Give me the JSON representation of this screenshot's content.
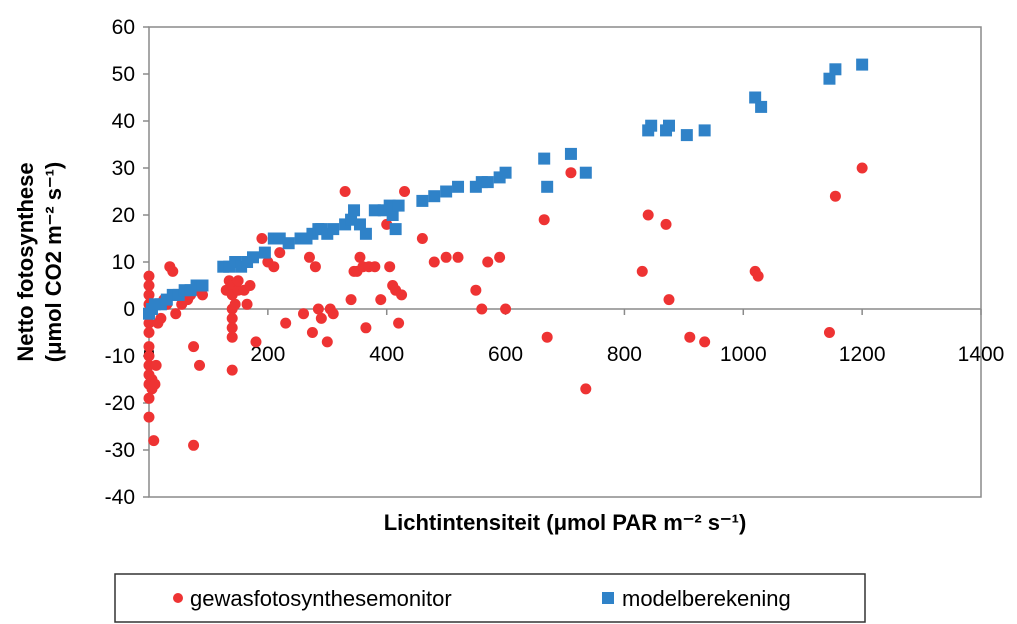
{
  "chart_data": {
    "type": "scatter",
    "title": "",
    "xlabel": "Lichtintensiteit (μmol PAR m⁻² s⁻¹)",
    "ylabel_line1": "Netto fotosynthese",
    "ylabel_line2": "(μmol CO2 m⁻² s⁻¹)",
    "xlim": [
      0,
      1400
    ],
    "ylim": [
      -40,
      60
    ],
    "xticks": [
      "0",
      "200",
      "400",
      "600",
      "800",
      "1000",
      "1200",
      "1400"
    ],
    "yticks": [
      "60",
      "50",
      "40",
      "30",
      "20",
      "10",
      "0",
      "-10",
      "-20",
      "-30",
      "-40"
    ],
    "grid": false,
    "legend_position": "bottom",
    "series": [
      {
        "name": "gewasfotosynthesemonitor",
        "color": "#ee3333",
        "marker": "circle",
        "points": [
          [
            0,
            7
          ],
          [
            0,
            5
          ],
          [
            0,
            3
          ],
          [
            0,
            1
          ],
          [
            0,
            -1
          ],
          [
            0,
            -3
          ],
          [
            0,
            -5
          ],
          [
            0,
            -8
          ],
          [
            0,
            -10
          ],
          [
            0,
            -12
          ],
          [
            0,
            -14
          ],
          [
            0,
            -16
          ],
          [
            0,
            -19
          ],
          [
            0,
            -23
          ],
          [
            5,
            -17
          ],
          [
            5,
            -15
          ],
          [
            8,
            -28
          ],
          [
            10,
            -16
          ],
          [
            12,
            -12
          ],
          [
            15,
            -3
          ],
          [
            20,
            -2
          ],
          [
            25,
            2
          ],
          [
            30,
            1
          ],
          [
            35,
            9
          ],
          [
            40,
            8
          ],
          [
            45,
            -1
          ],
          [
            50,
            3
          ],
          [
            55,
            1
          ],
          [
            60,
            4
          ],
          [
            65,
            2
          ],
          [
            70,
            3
          ],
          [
            75,
            -8
          ],
          [
            75,
            -29
          ],
          [
            80,
            4
          ],
          [
            85,
            -12
          ],
          [
            90,
            3
          ],
          [
            130,
            4
          ],
          [
            135,
            6
          ],
          [
            140,
            5
          ],
          [
            140,
            3
          ],
          [
            140,
            0
          ],
          [
            140,
            -2
          ],
          [
            140,
            -4
          ],
          [
            140,
            -6
          ],
          [
            140,
            -13
          ],
          [
            145,
            1
          ],
          [
            150,
            4
          ],
          [
            150,
            6
          ],
          [
            160,
            4
          ],
          [
            165,
            1
          ],
          [
            170,
            5
          ],
          [
            180,
            -7
          ],
          [
            190,
            15
          ],
          [
            200,
            10
          ],
          [
            210,
            9
          ],
          [
            220,
            12
          ],
          [
            230,
            -3
          ],
          [
            260,
            -1
          ],
          [
            270,
            11
          ],
          [
            275,
            -5
          ],
          [
            280,
            9
          ],
          [
            285,
            0
          ],
          [
            290,
            -2
          ],
          [
            300,
            -7
          ],
          [
            305,
            0
          ],
          [
            310,
            -1
          ],
          [
            330,
            25
          ],
          [
            340,
            2
          ],
          [
            345,
            8
          ],
          [
            350,
            8
          ],
          [
            355,
            11
          ],
          [
            360,
            9
          ],
          [
            365,
            -4
          ],
          [
            370,
            9
          ],
          [
            380,
            9
          ],
          [
            390,
            2
          ],
          [
            400,
            18
          ],
          [
            405,
            9
          ],
          [
            410,
            5
          ],
          [
            415,
            4
          ],
          [
            420,
            -3
          ],
          [
            425,
            3
          ],
          [
            430,
            25
          ],
          [
            460,
            15
          ],
          [
            480,
            10
          ],
          [
            500,
            11
          ],
          [
            520,
            11
          ],
          [
            550,
            4
          ],
          [
            560,
            0
          ],
          [
            570,
            10
          ],
          [
            590,
            11
          ],
          [
            600,
            0
          ],
          [
            665,
            19
          ],
          [
            670,
            -6
          ],
          [
            710,
            29
          ],
          [
            735,
            -17
          ],
          [
            830,
            8
          ],
          [
            840,
            20
          ],
          [
            870,
            18
          ],
          [
            875,
            2
          ],
          [
            910,
            -6
          ],
          [
            935,
            -7
          ],
          [
            1020,
            8
          ],
          [
            1025,
            7
          ],
          [
            1145,
            -5
          ],
          [
            1155,
            24
          ],
          [
            1200,
            30
          ]
        ]
      },
      {
        "name": "modelberekening",
        "color": "#2f82c8",
        "marker": "square",
        "points": [
          [
            0,
            -1
          ],
          [
            5,
            0
          ],
          [
            10,
            1
          ],
          [
            20,
            1
          ],
          [
            30,
            2
          ],
          [
            40,
            3
          ],
          [
            50,
            3
          ],
          [
            60,
            4
          ],
          [
            70,
            4
          ],
          [
            80,
            5
          ],
          [
            90,
            5
          ],
          [
            125,
            9
          ],
          [
            135,
            9
          ],
          [
            145,
            10
          ],
          [
            155,
            9
          ],
          [
            165,
            10
          ],
          [
            175,
            11
          ],
          [
            195,
            12
          ],
          [
            210,
            15
          ],
          [
            220,
            15
          ],
          [
            235,
            14
          ],
          [
            255,
            15
          ],
          [
            265,
            15
          ],
          [
            275,
            16
          ],
          [
            285,
            17
          ],
          [
            290,
            17
          ],
          [
            300,
            16
          ],
          [
            310,
            17
          ],
          [
            330,
            18
          ],
          [
            340,
            19
          ],
          [
            345,
            21
          ],
          [
            355,
            18
          ],
          [
            365,
            16
          ],
          [
            380,
            21
          ],
          [
            395,
            21
          ],
          [
            405,
            22
          ],
          [
            410,
            20
          ],
          [
            415,
            17
          ],
          [
            420,
            22
          ],
          [
            460,
            23
          ],
          [
            480,
            24
          ],
          [
            500,
            25
          ],
          [
            520,
            26
          ],
          [
            550,
            26
          ],
          [
            560,
            27
          ],
          [
            570,
            27
          ],
          [
            590,
            28
          ],
          [
            600,
            29
          ],
          [
            665,
            32
          ],
          [
            670,
            26
          ],
          [
            710,
            33
          ],
          [
            735,
            29
          ],
          [
            840,
            38
          ],
          [
            845,
            39
          ],
          [
            870,
            38
          ],
          [
            875,
            39
          ],
          [
            905,
            37
          ],
          [
            935,
            38
          ],
          [
            1020,
            45
          ],
          [
            1030,
            43
          ],
          [
            1145,
            49
          ],
          [
            1155,
            51
          ],
          [
            1200,
            52
          ]
        ]
      }
    ]
  }
}
